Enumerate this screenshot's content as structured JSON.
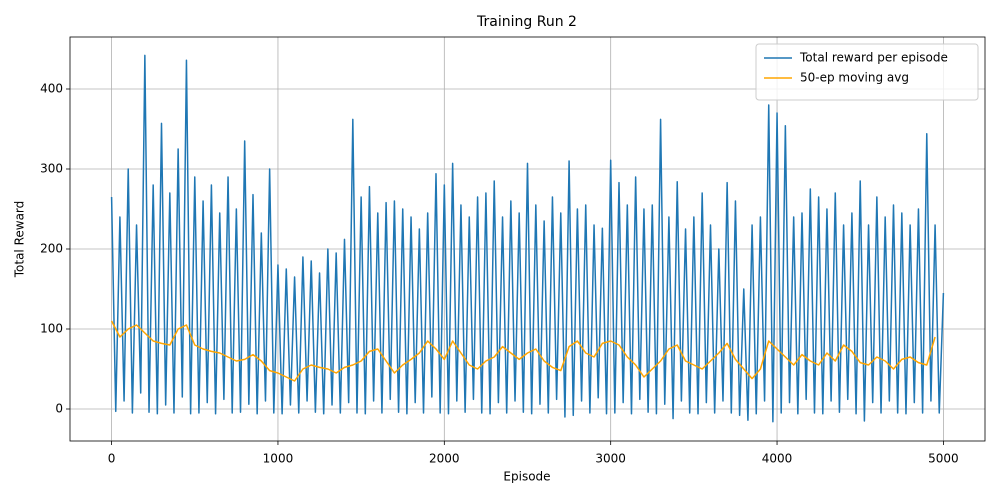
{
  "chart_data": {
    "type": "line",
    "title": "Training Run 2",
    "x_label": "Episode",
    "y_label": "Total Reward",
    "xlim": [
      -250,
      5250
    ],
    "ylim": [
      -40,
      465
    ],
    "xticks": [
      0,
      1000,
      2000,
      3000,
      4000,
      5000
    ],
    "yticks": [
      0,
      100,
      200,
      300,
      400
    ],
    "grid": true,
    "legend": "upper right",
    "series": [
      {
        "name": "Total reward per episode",
        "color": "#1f77b4",
        "x": [
          0,
          25,
          50,
          75,
          100,
          125,
          150,
          175,
          200,
          225,
          250,
          275,
          300,
          325,
          350,
          375,
          400,
          425,
          450,
          475,
          500,
          525,
          550,
          575,
          600,
          625,
          650,
          675,
          700,
          725,
          750,
          775,
          800,
          825,
          850,
          875,
          900,
          925,
          950,
          975,
          1000,
          1025,
          1050,
          1075,
          1100,
          1125,
          1150,
          1175,
          1200,
          1225,
          1250,
          1275,
          1300,
          1325,
          1350,
          1375,
          1400,
          1425,
          1450,
          1475,
          1500,
          1525,
          1550,
          1575,
          1600,
          1625,
          1650,
          1675,
          1700,
          1725,
          1750,
          1775,
          1800,
          1825,
          1850,
          1875,
          1900,
          1925,
          1950,
          1975,
          2000,
          2025,
          2050,
          2075,
          2100,
          2125,
          2150,
          2175,
          2200,
          2225,
          2250,
          2275,
          2300,
          2325,
          2350,
          2375,
          2400,
          2425,
          2450,
          2475,
          2500,
          2525,
          2550,
          2575,
          2600,
          2625,
          2650,
          2675,
          2700,
          2725,
          2750,
          2775,
          2800,
          2825,
          2850,
          2875,
          2900,
          2925,
          2950,
          2975,
          3000,
          3025,
          3050,
          3075,
          3100,
          3125,
          3150,
          3175,
          3200,
          3225,
          3250,
          3275,
          3300,
          3325,
          3350,
          3375,
          3400,
          3425,
          3450,
          3475,
          3500,
          3525,
          3550,
          3575,
          3600,
          3625,
          3650,
          3675,
          3700,
          3725,
          3750,
          3775,
          3800,
          3825,
          3850,
          3875,
          3900,
          3925,
          3950,
          3975,
          4000,
          4025,
          4050,
          4075,
          4100,
          4125,
          4150,
          4175,
          4200,
          4225,
          4250,
          4275,
          4300,
          4325,
          4350,
          4375,
          4400,
          4425,
          4450,
          4475,
          4500,
          4525,
          4550,
          4575,
          4600,
          4625,
          4650,
          4675,
          4700,
          4725,
          4750,
          4775,
          4800,
          4825,
          4850,
          4875,
          4900,
          4925,
          4950,
          4975,
          5000
        ],
        "values": [
          265,
          -3,
          240,
          10,
          300,
          -5,
          230,
          20,
          442,
          -4,
          280,
          -6,
          357,
          5,
          270,
          -5,
          325,
          15,
          436,
          -6,
          290,
          -5,
          260,
          8,
          280,
          -6,
          245,
          12,
          290,
          -5,
          250,
          -4,
          335,
          6,
          268,
          -6,
          220,
          10,
          300,
          -5,
          180,
          -6,
          175,
          5,
          165,
          -5,
          190,
          10,
          185,
          -4,
          170,
          -6,
          200,
          5,
          195,
          -5,
          212,
          8,
          362,
          -5,
          265,
          -6,
          278,
          10,
          245,
          -5,
          258,
          12,
          260,
          -4,
          250,
          -6,
          240,
          8,
          225,
          -5,
          245,
          15,
          294,
          -5,
          280,
          -6,
          307,
          10,
          255,
          -4,
          240,
          12,
          265,
          -5,
          270,
          -6,
          285,
          8,
          240,
          -5,
          260,
          10,
          245,
          -4,
          307,
          -6,
          255,
          6,
          235,
          -5,
          265,
          12,
          245,
          -10,
          310,
          -8,
          250,
          10,
          255,
          -5,
          230,
          14,
          226,
          -6,
          311,
          -5,
          283,
          8,
          255,
          -6,
          290,
          12,
          250,
          -4,
          255,
          -6,
          362,
          6,
          240,
          -12,
          284,
          10,
          225,
          -5,
          240,
          -6,
          270,
          8,
          230,
          -5,
          200,
          10,
          283,
          -5,
          260,
          -8,
          150,
          -14,
          230,
          -6,
          240,
          10,
          380,
          -16,
          370,
          -5,
          354,
          8,
          240,
          -6,
          245,
          12,
          275,
          -5,
          265,
          -6,
          250,
          10,
          270,
          -4,
          230,
          12,
          245,
          -6,
          285,
          -15,
          230,
          8,
          265,
          -5,
          240,
          10,
          255,
          -5,
          245,
          -6,
          230,
          8,
          250,
          -5,
          344,
          10,
          230,
          -5,
          145
        ]
      },
      {
        "name": "50-ep moving avg",
        "color": "#ffa500",
        "x": [
          0,
          50,
          100,
          150,
          200,
          250,
          300,
          350,
          400,
          450,
          500,
          550,
          600,
          650,
          700,
          750,
          800,
          850,
          900,
          950,
          1000,
          1050,
          1100,
          1150,
          1200,
          1250,
          1300,
          1350,
          1400,
          1450,
          1500,
          1550,
          1600,
          1650,
          1700,
          1750,
          1800,
          1850,
          1900,
          1950,
          2000,
          2050,
          2100,
          2150,
          2200,
          2250,
          2300,
          2350,
          2400,
          2450,
          2500,
          2550,
          2600,
          2650,
          2700,
          2750,
          2800,
          2850,
          2900,
          2950,
          3000,
          3050,
          3100,
          3150,
          3200,
          3250,
          3300,
          3350,
          3400,
          3450,
          3500,
          3550,
          3600,
          3650,
          3700,
          3750,
          3800,
          3850,
          3900,
          3950,
          4000,
          4050,
          4100,
          4150,
          4200,
          4250,
          4300,
          4350,
          4400,
          4450,
          4500,
          4550,
          4600,
          4650,
          4700,
          4750,
          4800,
          4850,
          4900,
          4950
        ],
        "values": [
          110,
          90,
          100,
          105,
          95,
          85,
          82,
          80,
          100,
          105,
          80,
          75,
          72,
          70,
          65,
          60,
          62,
          68,
          60,
          48,
          45,
          40,
          35,
          50,
          55,
          52,
          50,
          45,
          52,
          55,
          60,
          72,
          75,
          60,
          45,
          55,
          62,
          70,
          85,
          75,
          62,
          85,
          70,
          55,
          50,
          60,
          65,
          78,
          70,
          62,
          70,
          75,
          60,
          52,
          48,
          78,
          85,
          70,
          65,
          82,
          85,
          80,
          65,
          55,
          40,
          50,
          60,
          75,
          80,
          60,
          55,
          50,
          60,
          70,
          82,
          62,
          50,
          38,
          50,
          85,
          75,
          65,
          55,
          68,
          60,
          55,
          70,
          60,
          80,
          72,
          58,
          55,
          65,
          60,
          50,
          62,
          65,
          58,
          55,
          90
        ]
      }
    ]
  }
}
